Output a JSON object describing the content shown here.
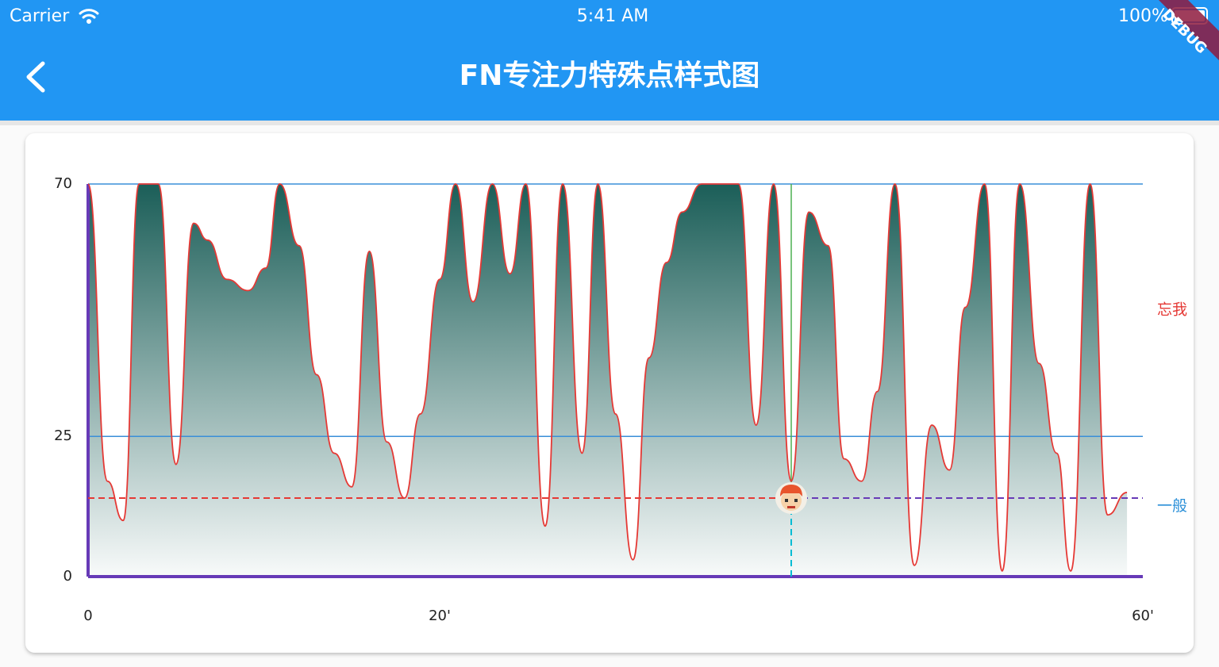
{
  "status_bar": {
    "carrier": "Carrier",
    "time": "5:41 AM",
    "battery": "100%"
  },
  "app_bar": {
    "title": "FN专注力特殊点样式图"
  },
  "debug_banner": "DEBUG",
  "chart_data": {
    "type": "area",
    "x": [
      0,
      1.1,
      2.0,
      2.9,
      4.0,
      5.0,
      6.0,
      6.8,
      7.9,
      9.1,
      10.1,
      10.9,
      12.0,
      13.0,
      14.0,
      15.0,
      16.0,
      17.0,
      18.0,
      18.9,
      20.0,
      20.9,
      21.9,
      23.0,
      24.0,
      24.9,
      26.0,
      27.0,
      28.1,
      29.0,
      30.0,
      31.0,
      31.9,
      32.9,
      33.8,
      34.9,
      37.0,
      38.0,
      39.0,
      40.0,
      41.0,
      42.1,
      43.0,
      44.0,
      44.9,
      45.9,
      47.0,
      48.0,
      49.0,
      49.9,
      51.0,
      52.0,
      53.0,
      54.1,
      55.1,
      55.9,
      57.0,
      58.0,
      59.1
    ],
    "values": [
      70,
      17,
      10,
      70,
      70,
      20,
      63,
      60,
      53,
      51,
      55,
      70,
      59,
      36,
      22,
      16,
      58,
      24,
      14,
      29,
      53,
      70,
      49,
      70,
      54,
      70,
      9,
      70,
      22,
      70,
      29,
      3,
      39,
      56,
      65,
      70,
      70,
      27,
      70,
      17,
      65,
      59,
      21,
      17,
      33,
      70,
      2,
      27,
      19,
      48,
      70,
      1,
      70,
      38,
      22,
      1,
      70,
      11,
      15
    ],
    "line_color": "#e53935",
    "fill_color": "#1b5e58",
    "xlim": [
      0,
      60
    ],
    "ylim": [
      0,
      70
    ],
    "xticks": [
      0,
      {
        "value": 20,
        "label": "20'"
      },
      {
        "value": 60,
        "label": "60'"
      }
    ],
    "yticks": [
      0,
      25,
      70
    ],
    "grid": true,
    "grid_color": "#3a8fd8",
    "axis_color": "#673ab7",
    "zone_labels": [
      {
        "label": "一般",
        "color": "#2a8fd8"
      },
      {
        "label": "忘我",
        "color": "#e53935"
      }
    ],
    "marker": {
      "x": 40,
      "y": 14
    }
  }
}
